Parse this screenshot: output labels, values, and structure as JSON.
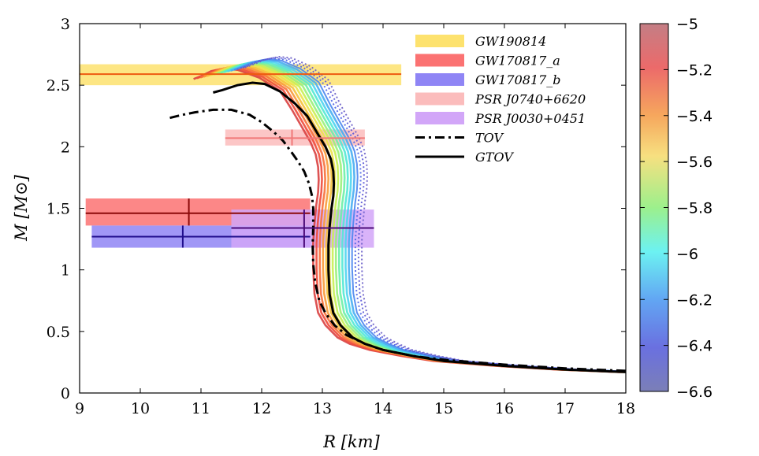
{
  "chart_data": {
    "type": "line",
    "xlabel": "R [km]",
    "ylabel": "M [M⊙]",
    "xlim": [
      9,
      18
    ],
    "ylim": [
      0,
      3
    ],
    "x_ticks": [
      9,
      10,
      11,
      12,
      13,
      14,
      15,
      16,
      17,
      18
    ],
    "y_ticks": [
      0,
      0.5,
      1,
      1.5,
      2,
      2.5,
      3
    ],
    "y_tick_labels": [
      "0",
      "0.5",
      "1",
      "1.5",
      "2",
      "2.5",
      "3"
    ],
    "colorbar": {
      "range": [
        -6.6,
        -5.0
      ],
      "ticks": [
        -5,
        -5.2,
        -5.4,
        -5.6,
        -5.8,
        -6,
        -6.2,
        -6.4,
        -6.6
      ],
      "tick_labels": [
        "−5",
        "−5.2",
        "−5.4",
        "−5.6",
        "−5.8",
        "−6",
        "−6.2",
        "−6.4",
        "−6.6"
      ],
      "colormap": "jet"
    },
    "legend_position": "top-right",
    "legend": [
      {
        "label": "GW190814",
        "style": "band",
        "color": "#fde26e"
      },
      {
        "label": "GW170817_a",
        "style": "band",
        "color": "#fb7272"
      },
      {
        "label": "GW170817_b",
        "style": "band",
        "color": "#8f85f5"
      },
      {
        "label": "PSR J0740+6620",
        "style": "band",
        "color": "#fbbcbc"
      },
      {
        "label": "PSR J0030+0451",
        "style": "band",
        "color": "#d2a6f8"
      },
      {
        "label": "TOV",
        "style": "dashdot",
        "color": "#000000"
      },
      {
        "label": "GTOV",
        "style": "solid",
        "color": "#000000"
      }
    ],
    "constraints": [
      {
        "name": "GW190814",
        "type": "hband",
        "x_range": [
          9.0,
          14.3
        ],
        "y_range": [
          2.5,
          2.67
        ],
        "central": 2.59,
        "color": "#fde26e",
        "line_color": "#ee5a10"
      },
      {
        "name": "GW170817_a",
        "type": "box",
        "x_range": [
          9.1,
          12.8
        ],
        "y_range": [
          1.36,
          1.58
        ],
        "center": [
          10.8,
          1.46
        ],
        "color": "#fb7272",
        "line_color": "#8b0a0a"
      },
      {
        "name": "GW170817_b",
        "type": "box",
        "x_range": [
          9.2,
          12.8
        ],
        "y_range": [
          1.18,
          1.36
        ],
        "center": [
          10.7,
          1.27
        ],
        "color": "#8f85f5",
        "line_color": "#1f0d8c"
      },
      {
        "name": "PSR J0740+6620",
        "type": "box",
        "x_range": [
          11.4,
          13.7
        ],
        "y_range": [
          2.01,
          2.14
        ],
        "center": [
          12.5,
          2.07
        ],
        "color": "#fbbcbc",
        "line_color": "#f07878"
      },
      {
        "name": "PSR J0030+0451",
        "type": "box",
        "x_range": [
          11.5,
          13.85
        ],
        "y_range": [
          1.18,
          1.49
        ],
        "center": [
          12.7,
          1.34
        ],
        "color": "#d2a6f8",
        "line_color": "#4a0a78"
      }
    ],
    "series": [
      {
        "name": "TOV",
        "style": "dashdot",
        "x": [
          18.0,
          17.0,
          16.0,
          15.0,
          14.5,
          14.0,
          13.7,
          13.4,
          13.2,
          13.05,
          12.95,
          12.88,
          12.85,
          12.84,
          12.85,
          12.85,
          12.83,
          12.78,
          12.7,
          12.6,
          12.5,
          12.35,
          12.2,
          12.0,
          11.8,
          11.5,
          11.2,
          10.9,
          10.7,
          10.45
        ],
        "y": [
          0.18,
          0.2,
          0.23,
          0.27,
          0.3,
          0.35,
          0.4,
          0.47,
          0.55,
          0.65,
          0.75,
          0.9,
          1.05,
          1.2,
          1.35,
          1.5,
          1.6,
          1.7,
          1.8,
          1.88,
          1.95,
          2.05,
          2.12,
          2.2,
          2.26,
          2.3,
          2.3,
          2.28,
          2.26,
          2.23
        ]
      },
      {
        "name": "GTOV",
        "style": "solid",
        "x": [
          18.0,
          17.0,
          16.0,
          15.0,
          14.5,
          14.0,
          13.7,
          13.5,
          13.3,
          13.18,
          13.12,
          13.1,
          13.1,
          13.12,
          13.15,
          13.18,
          13.19,
          13.18,
          13.14,
          13.05,
          12.93,
          12.75,
          12.55,
          12.3,
          12.05,
          11.85,
          11.6,
          11.35,
          11.2
        ],
        "y": [
          0.17,
          0.19,
          0.22,
          0.26,
          0.3,
          0.35,
          0.4,
          0.45,
          0.55,
          0.65,
          0.8,
          1.0,
          1.2,
          1.35,
          1.5,
          1.6,
          1.7,
          1.8,
          1.9,
          2.0,
          2.1,
          2.25,
          2.35,
          2.45,
          2.51,
          2.52,
          2.5,
          2.46,
          2.44
        ]
      }
    ],
    "color_family": {
      "description_count": 16,
      "shift_min_km": -0.25,
      "shift_max_km": 0.55,
      "values_from": -5.1,
      "values_to": -6.5
    }
  }
}
